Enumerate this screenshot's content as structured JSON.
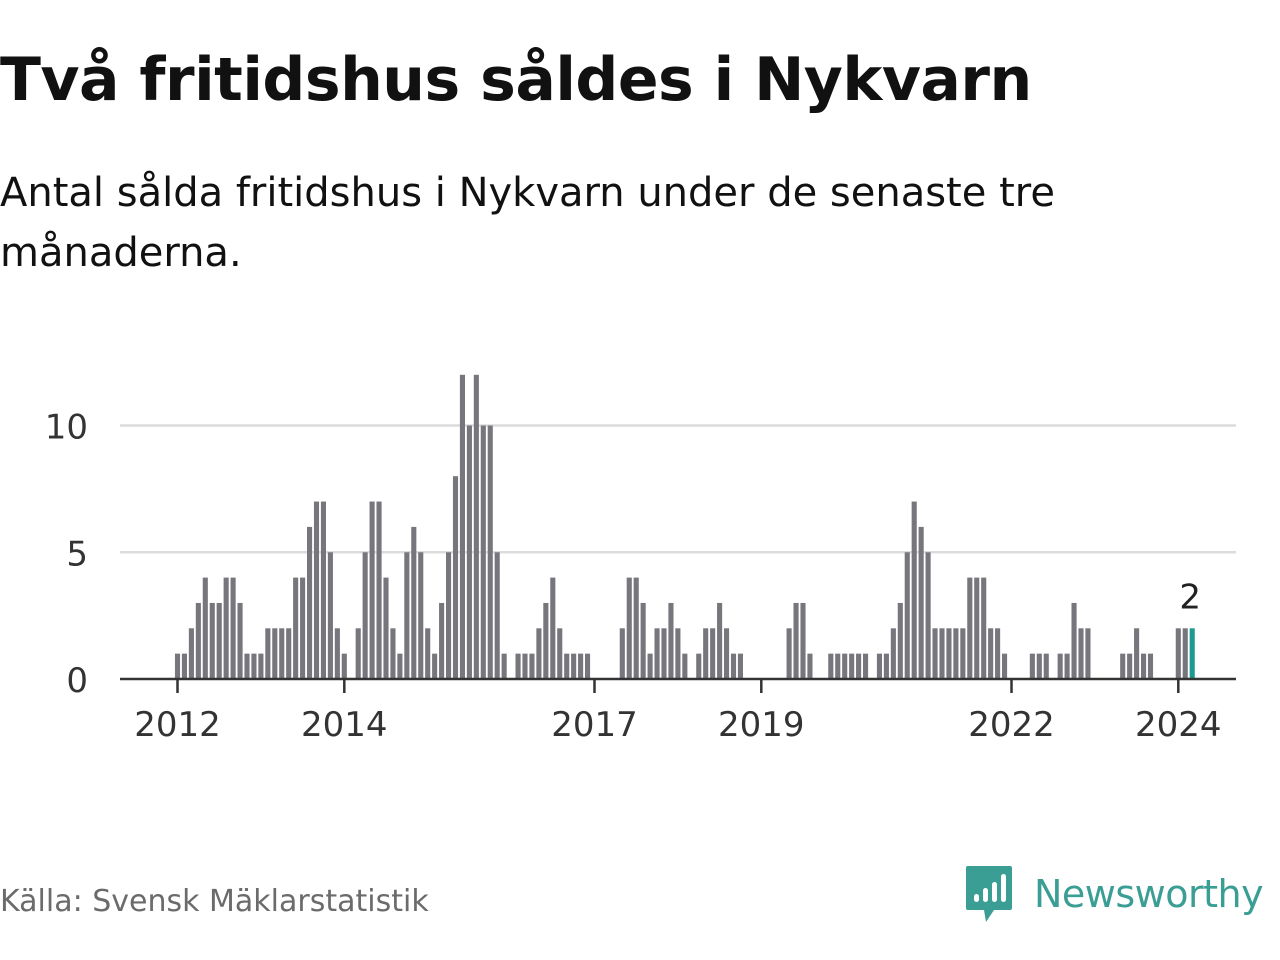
{
  "title": "Två fritidshus såldes i Nykvarn",
  "subtitle": "Antal sålda fritidshus i Nykvarn under de senaste tre månaderna.",
  "source": "Källa: Svensk Mäklarstatistik",
  "brand": {
    "name": "Newsworthy",
    "icon": "newsworthy-logo-icon"
  },
  "colors": {
    "bar": "#76767c",
    "highlight": "#1a9a90",
    "grid": "#dcdcdc",
    "axis": "#333333",
    "brand": "#3a9e94"
  },
  "chart_data": {
    "type": "bar",
    "title": "",
    "xlabel": "",
    "ylabel": "",
    "ylim": [
      0,
      12
    ],
    "yticks": [
      0,
      5,
      10
    ],
    "xticks": [
      "2012",
      "2014",
      "2017",
      "2019",
      "2022",
      "2024"
    ],
    "x_start": "2011-12",
    "x_end": "2024-01",
    "grid": true,
    "highlight_label": "2",
    "values": [
      0,
      1,
      1,
      2,
      3,
      4,
      3,
      3,
      4,
      4,
      3,
      1,
      1,
      1,
      2,
      2,
      2,
      2,
      4,
      4,
      6,
      7,
      7,
      5,
      2,
      1,
      0,
      2,
      5,
      7,
      7,
      4,
      2,
      1,
      5,
      6,
      5,
      2,
      1,
      3,
      5,
      8,
      12,
      10,
      12,
      10,
      10,
      5,
      1,
      0,
      1,
      1,
      1,
      2,
      3,
      4,
      2,
      1,
      1,
      1,
      1,
      0,
      0,
      0,
      0,
      2,
      4,
      4,
      3,
      1,
      2,
      2,
      3,
      2,
      1,
      0,
      1,
      2,
      2,
      3,
      2,
      1,
      1,
      0,
      0,
      0,
      0,
      0,
      0,
      2,
      3,
      3,
      1,
      0,
      0,
      1,
      1,
      1,
      1,
      1,
      1,
      0,
      1,
      1,
      2,
      3,
      5,
      7,
      6,
      5,
      2,
      2,
      2,
      2,
      2,
      4,
      4,
      4,
      2,
      2,
      1,
      0,
      0,
      0,
      1,
      1,
      1,
      0,
      1,
      1,
      3,
      2,
      2,
      0,
      0,
      0,
      0,
      1,
      1,
      2,
      1,
      1,
      0,
      0,
      0,
      2,
      2,
      2
    ]
  }
}
